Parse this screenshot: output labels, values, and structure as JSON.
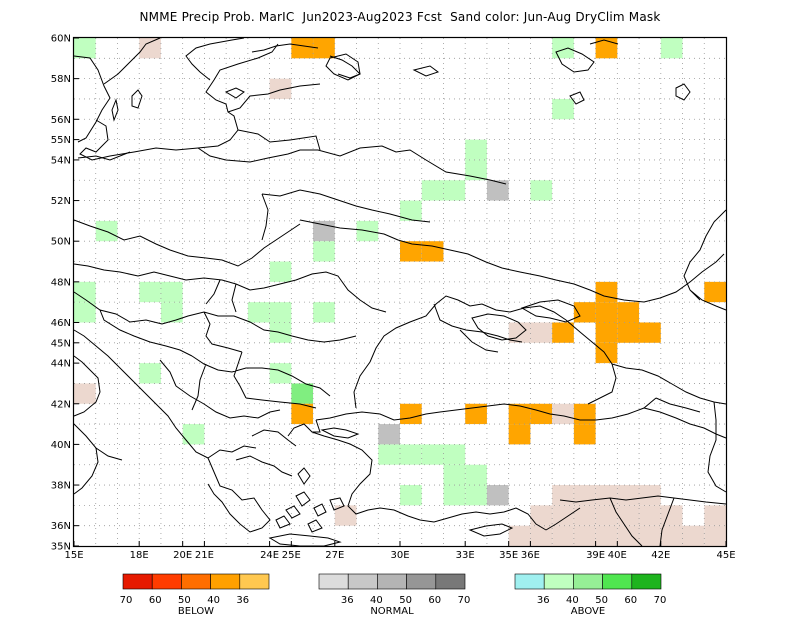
{
  "title": "NMME Precip Prob. MarIC  Jun2023-Aug2023 Fcst  Sand color: Jun-Aug DryClim Mask",
  "map": {
    "lon_range": [
      15,
      45
    ],
    "lat_range": [
      35,
      60
    ],
    "lon_ticks": [
      {
        "lon": 15,
        "label": "15E"
      },
      {
        "lon": 18,
        "label": "18E"
      },
      {
        "lon": 20,
        "label": "20E"
      },
      {
        "lon": 21,
        "label": "21E"
      },
      {
        "lon": 24,
        "label": "24E"
      },
      {
        "lon": 25,
        "label": "25E"
      },
      {
        "lon": 27,
        "label": "27E"
      },
      {
        "lon": 30,
        "label": "30E"
      },
      {
        "lon": 33,
        "label": "33E"
      },
      {
        "lon": 35,
        "label": "35E"
      },
      {
        "lon": 36,
        "label": "36E"
      },
      {
        "lon": 39,
        "label": "39E"
      },
      {
        "lon": 40,
        "label": "40E"
      },
      {
        "lon": 42,
        "label": "42E"
      },
      {
        "lon": 45,
        "label": "45E"
      }
    ],
    "lat_ticks": [
      {
        "lat": 35,
        "label": "35N"
      },
      {
        "lat": 36,
        "label": "36N"
      },
      {
        "lat": 38,
        "label": "38N"
      },
      {
        "lat": 40,
        "label": "40N"
      },
      {
        "lat": 42,
        "label": "42N"
      },
      {
        "lat": 44,
        "label": "44N"
      },
      {
        "lat": 45,
        "label": "45N"
      },
      {
        "lat": 46,
        "label": "46N"
      },
      {
        "lat": 48,
        "label": "48N"
      },
      {
        "lat": 50,
        "label": "50N"
      },
      {
        "lat": 52,
        "label": "52N"
      },
      {
        "lat": 54,
        "label": "54N"
      },
      {
        "lat": 55,
        "label": "55N"
      },
      {
        "lat": 56,
        "label": "56N"
      },
      {
        "lat": 58,
        "label": "58N"
      },
      {
        "lat": 60,
        "label": "60N"
      }
    ],
    "grid_lons": [
      16,
      17,
      18,
      19,
      20,
      21,
      22,
      23,
      24,
      25,
      26,
      27,
      28,
      29,
      30,
      31,
      32,
      33,
      34,
      35,
      36,
      37,
      38,
      39,
      40,
      41,
      42,
      43,
      44
    ],
    "grid_lats": [
      36,
      37,
      38,
      39,
      40,
      41,
      42,
      43,
      44,
      45,
      46,
      47,
      48,
      49,
      50,
      51,
      52,
      53,
      54,
      55,
      56,
      57,
      58,
      59
    ]
  },
  "category_colors": {
    "below": "#ffa500",
    "normal": "#c0c0c0",
    "above": "#c0ffc0",
    "above50": "#80ee80",
    "dryclim": "#ecd8cf"
  },
  "cells": [
    {
      "lon": 15,
      "lat": 59,
      "cat": "above"
    },
    {
      "lon": 18,
      "lat": 59,
      "cat": "dryclim"
    },
    {
      "lon": 25,
      "lat": 59,
      "cat": "below"
    },
    {
      "lon": 26,
      "lat": 59,
      "cat": "below"
    },
    {
      "lon": 37,
      "lat": 59,
      "cat": "above"
    },
    {
      "lon": 39,
      "lat": 59,
      "cat": "below"
    },
    {
      "lon": 42,
      "lat": 59,
      "cat": "above"
    },
    {
      "lon": 24,
      "lat": 57,
      "cat": "dryclim"
    },
    {
      "lon": 37,
      "lat": 56,
      "cat": "above"
    },
    {
      "lon": 33,
      "lat": 54,
      "cat": "above"
    },
    {
      "lon": 33,
      "lat": 53,
      "cat": "above"
    },
    {
      "lon": 31,
      "lat": 52,
      "cat": "above"
    },
    {
      "lon": 32,
      "lat": 52,
      "cat": "above"
    },
    {
      "lon": 34,
      "lat": 52,
      "cat": "normal"
    },
    {
      "lon": 36,
      "lat": 52,
      "cat": "above"
    },
    {
      "lon": 30,
      "lat": 51,
      "cat": "above"
    },
    {
      "lon": 16,
      "lat": 50,
      "cat": "above"
    },
    {
      "lon": 26,
      "lat": 50,
      "cat": "normal"
    },
    {
      "lon": 28,
      "lat": 50,
      "cat": "above"
    },
    {
      "lon": 30,
      "lat": 49,
      "cat": "below"
    },
    {
      "lon": 31,
      "lat": 49,
      "cat": "below"
    },
    {
      "lon": 26,
      "lat": 49,
      "cat": "above"
    },
    {
      "lon": 24,
      "lat": 48,
      "cat": "above"
    },
    {
      "lon": 15,
      "lat": 47,
      "cat": "above"
    },
    {
      "lon": 18,
      "lat": 47,
      "cat": "above"
    },
    {
      "lon": 19,
      "lat": 47,
      "cat": "above"
    },
    {
      "lon": 39,
      "lat": 47,
      "cat": "below"
    },
    {
      "lon": 44,
      "lat": 47,
      "cat": "below"
    },
    {
      "lon": 15,
      "lat": 46,
      "cat": "above"
    },
    {
      "lon": 19,
      "lat": 46,
      "cat": "above"
    },
    {
      "lon": 23,
      "lat": 46,
      "cat": "above"
    },
    {
      "lon": 24,
      "lat": 46,
      "cat": "above"
    },
    {
      "lon": 26,
      "lat": 46,
      "cat": "above"
    },
    {
      "lon": 38,
      "lat": 46,
      "cat": "below"
    },
    {
      "lon": 39,
      "lat": 46,
      "cat": "below"
    },
    {
      "lon": 40,
      "lat": 46,
      "cat": "below"
    },
    {
      "lon": 24,
      "lat": 45,
      "cat": "above"
    },
    {
      "lon": 35,
      "lat": 45,
      "cat": "dryclim"
    },
    {
      "lon": 36,
      "lat": 45,
      "cat": "dryclim"
    },
    {
      "lon": 37,
      "lat": 45,
      "cat": "below"
    },
    {
      "lon": 39,
      "lat": 45,
      "cat": "below"
    },
    {
      "lon": 40,
      "lat": 45,
      "cat": "below"
    },
    {
      "lon": 41,
      "lat": 45,
      "cat": "below"
    },
    {
      "lon": 39,
      "lat": 44,
      "cat": "below"
    },
    {
      "lon": 18,
      "lat": 43,
      "cat": "above"
    },
    {
      "lon": 24,
      "lat": 43,
      "cat": "above"
    },
    {
      "lon": 15,
      "lat": 42,
      "cat": "dryclim"
    },
    {
      "lon": 25,
      "lat": 42,
      "cat": "above50"
    },
    {
      "lon": 25,
      "lat": 41,
      "cat": "below"
    },
    {
      "lon": 30,
      "lat": 41,
      "cat": "below"
    },
    {
      "lon": 33,
      "lat": 41,
      "cat": "below"
    },
    {
      "lon": 35,
      "lat": 41,
      "cat": "below"
    },
    {
      "lon": 36,
      "lat": 41,
      "cat": "below"
    },
    {
      "lon": 37,
      "lat": 41,
      "cat": "dryclim"
    },
    {
      "lon": 38,
      "lat": 41,
      "cat": "below"
    },
    {
      "lon": 20,
      "lat": 40,
      "cat": "above"
    },
    {
      "lon": 29,
      "lat": 40,
      "cat": "normal"
    },
    {
      "lon": 35,
      "lat": 40,
      "cat": "below"
    },
    {
      "lon": 38,
      "lat": 40,
      "cat": "below"
    },
    {
      "lon": 29,
      "lat": 39,
      "cat": "above"
    },
    {
      "lon": 30,
      "lat": 39,
      "cat": "above"
    },
    {
      "lon": 31,
      "lat": 39,
      "cat": "above"
    },
    {
      "lon": 32,
      "lat": 39,
      "cat": "above"
    },
    {
      "lon": 32,
      "lat": 38,
      "cat": "above"
    },
    {
      "lon": 33,
      "lat": 38,
      "cat": "above"
    },
    {
      "lon": 30,
      "lat": 37,
      "cat": "above"
    },
    {
      "lon": 32,
      "lat": 37,
      "cat": "above"
    },
    {
      "lon": 33,
      "lat": 37,
      "cat": "above"
    },
    {
      "lon": 34,
      "lat": 37,
      "cat": "normal"
    },
    {
      "lon": 37,
      "lat": 37,
      "cat": "dryclim"
    },
    {
      "lon": 38,
      "lat": 37,
      "cat": "dryclim"
    },
    {
      "lon": 39,
      "lat": 37,
      "cat": "dryclim"
    },
    {
      "lon": 40,
      "lat": 37,
      "cat": "dryclim"
    },
    {
      "lon": 41,
      "lat": 37,
      "cat": "dryclim"
    },
    {
      "lon": 27,
      "lat": 36,
      "cat": "dryclim"
    },
    {
      "lon": 36,
      "lat": 36,
      "cat": "dryclim"
    },
    {
      "lon": 37,
      "lat": 36,
      "cat": "dryclim"
    },
    {
      "lon": 38,
      "lat": 36,
      "cat": "dryclim"
    },
    {
      "lon": 39,
      "lat": 36,
      "cat": "dryclim"
    },
    {
      "lon": 40,
      "lat": 36,
      "cat": "dryclim"
    },
    {
      "lon": 41,
      "lat": 36,
      "cat": "dryclim"
    },
    {
      "lon": 42,
      "lat": 36,
      "cat": "dryclim"
    },
    {
      "lon": 44,
      "lat": 36,
      "cat": "dryclim"
    },
    {
      "lon": 35,
      "lat": 35,
      "cat": "dryclim"
    },
    {
      "lon": 36,
      "lat": 35,
      "cat": "dryclim"
    },
    {
      "lon": 37,
      "lat": 35,
      "cat": "dryclim"
    },
    {
      "lon": 38,
      "lat": 35,
      "cat": "dryclim"
    },
    {
      "lon": 39,
      "lat": 35,
      "cat": "dryclim"
    },
    {
      "lon": 40,
      "lat": 35,
      "cat": "dryclim"
    },
    {
      "lon": 41,
      "lat": 35,
      "cat": "dryclim"
    },
    {
      "lon": 42,
      "lat": 35,
      "cat": "dryclim"
    },
    {
      "lon": 43,
      "lat": 35,
      "cat": "dryclim"
    },
    {
      "lon": 44,
      "lat": 35,
      "cat": "dryclim"
    }
  ],
  "legend": [
    {
      "name": "below",
      "title": "BELOW",
      "colors": [
        "#e61a00",
        "#ff3c00",
        "#ff6e00",
        "#ffa000",
        "#ffc850"
      ],
      "ticks": [
        "70",
        "60",
        "50",
        "40",
        "36"
      ]
    },
    {
      "name": "normal",
      "title": "NORMAL",
      "colors": [
        "#dcdcdc",
        "#c8c8c8",
        "#b4b4b4",
        "#969696",
        "#787878"
      ],
      "ticks": [
        "36",
        "40",
        "50",
        "60",
        "70"
      ]
    },
    {
      "name": "above",
      "title": "ABOVE",
      "colors": [
        "#a0f0f0",
        "#c0ffc0",
        "#96f096",
        "#50e650",
        "#1eb41e"
      ],
      "ticks": [
        "36",
        "40",
        "50",
        "60",
        "70"
      ]
    }
  ]
}
